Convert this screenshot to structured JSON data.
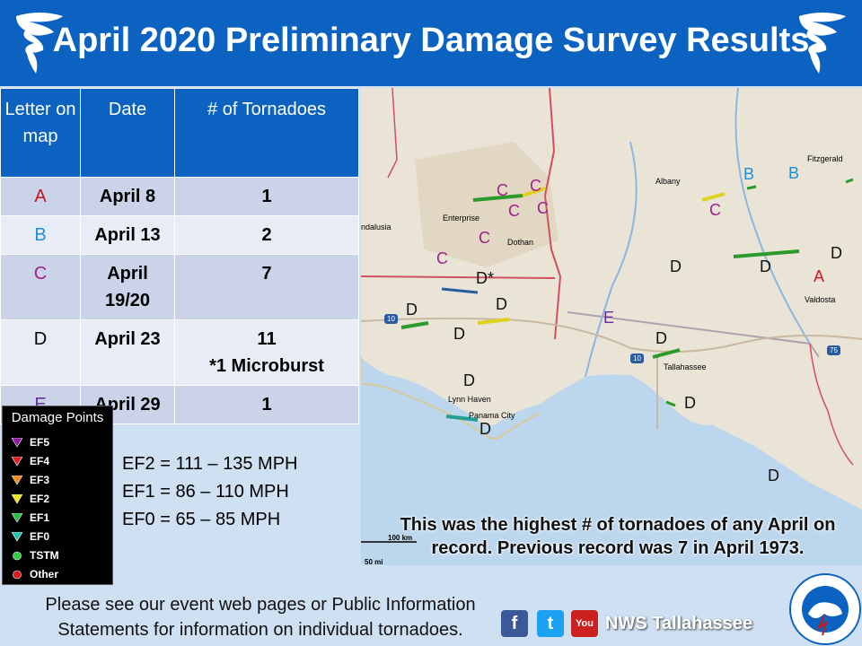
{
  "header": {
    "title": "April 2020 Preliminary Damage Survey Results"
  },
  "table": {
    "headers": [
      "Letter on map",
      "Date",
      "# of Tornadoes"
    ],
    "rows": [
      {
        "letter": "A",
        "letter_color": "#c0191f",
        "date": "April 8",
        "count": "1",
        "note": ""
      },
      {
        "letter": "B",
        "letter_color": "#1f8fd6",
        "date": "April 13",
        "count": "2",
        "note": ""
      },
      {
        "letter": "C",
        "letter_color": "#a0208c",
        "date": "April 19/20",
        "count": "7",
        "note": ""
      },
      {
        "letter": "D",
        "letter_color": "#111111",
        "date": "April 23",
        "count": "11",
        "note": "*1 Microburst"
      },
      {
        "letter": "E",
        "letter_color": "#6a2da0",
        "date": "April 29",
        "count": "1",
        "note": ""
      }
    ]
  },
  "legend": {
    "title": "Damage Points",
    "items": [
      {
        "label": "EF5",
        "color": "#8b1aa0",
        "shape": "triangle"
      },
      {
        "label": "EF4",
        "color": "#e02020",
        "shape": "triangle"
      },
      {
        "label": "EF3",
        "color": "#f08a1a",
        "shape": "triangle"
      },
      {
        "label": "EF2",
        "color": "#f2e21a",
        "shape": "triangle"
      },
      {
        "label": "EF1",
        "color": "#22c33a",
        "shape": "triangle"
      },
      {
        "label": "EF0",
        "color": "#22c3a8",
        "shape": "triangle"
      },
      {
        "label": "TSTM",
        "color": "#2ecc40",
        "shape": "circle"
      },
      {
        "label": "Other",
        "color": "#d91a1a",
        "shape": "circle"
      }
    ]
  },
  "ef_scale": [
    "EF2 = 111 – 135 MPH",
    "EF1 = 86 – 110 MPH",
    "EF0 = 65 – 85 MPH"
  ],
  "map": {
    "cities": [
      "Fitzgerald",
      "Albany",
      "Enterprise",
      "Dothan",
      "Valdosta",
      "Tallahassee",
      "Lynn Haven",
      "Panama City",
      "ndalusia"
    ],
    "highways": [
      "10",
      "10",
      "75"
    ],
    "scale": [
      "100 km",
      "50 mi"
    ],
    "markers": [
      {
        "text": "B"
      },
      {
        "text": "B"
      },
      {
        "text": "C"
      },
      {
        "text": "C"
      },
      {
        "text": "C"
      },
      {
        "text": "C"
      },
      {
        "text": "C"
      },
      {
        "text": "C"
      },
      {
        "text": "C"
      },
      {
        "text": "D"
      },
      {
        "text": "D"
      },
      {
        "text": "D"
      },
      {
        "text": "A"
      },
      {
        "text": "D*"
      },
      {
        "text": "D"
      },
      {
        "text": "D"
      },
      {
        "text": "D"
      },
      {
        "text": "E"
      },
      {
        "text": "D"
      },
      {
        "text": "D"
      },
      {
        "text": "D"
      },
      {
        "text": "D"
      },
      {
        "text": "D"
      }
    ],
    "caption": "This was the highest # of tornadoes of any April on record. Previous record was 7 in April 1973."
  },
  "footer": {
    "text": "Please see our event web pages or Public Information Statements for information on individual tornadoes.",
    "brand": "NWS Tallahassee",
    "social": [
      {
        "name": "facebook",
        "glyph": "f",
        "color": "#3b5998"
      },
      {
        "name": "twitter",
        "glyph": "t",
        "color": "#1da1f2"
      },
      {
        "name": "youtube",
        "glyph": "You",
        "color": "#cc1f1f"
      }
    ],
    "logo_text": "NATIONAL WEATHER SERVICE"
  }
}
